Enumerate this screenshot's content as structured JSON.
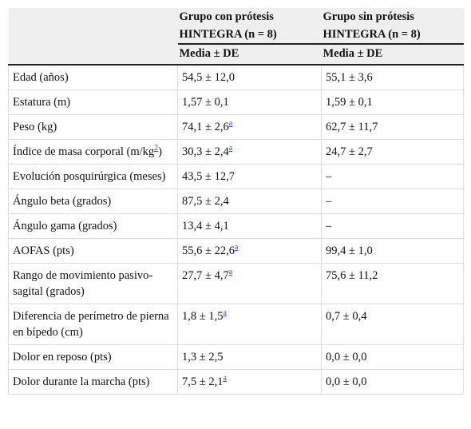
{
  "table": {
    "header": {
      "columns": [
        "Grupo con prótesis HINTEGRA (n = 8)",
        "Grupo sin prótesis HINTEGRA (n = 8)"
      ],
      "sub": [
        "Media ± DE",
        "Media ± DE"
      ]
    },
    "rows": [
      [
        [
          {
            "t": "Edad (años)"
          }
        ],
        [
          {
            "t": "54,5 ± 12,0"
          }
        ],
        [
          {
            "t": "55,1 ± 3,6"
          }
        ]
      ],
      [
        [
          {
            "t": "Estatura (m)"
          }
        ],
        [
          {
            "t": "1,57 ± 0,1"
          }
        ],
        [
          {
            "t": "1,59 ± 0,1"
          }
        ]
      ],
      [
        [
          {
            "t": "Peso (kg)"
          }
        ],
        [
          {
            "t": "74,1 ± 2,6"
          },
          {
            "sup": "a"
          }
        ],
        [
          {
            "t": "62,7 ± 11,7"
          }
        ]
      ],
      [
        [
          {
            "t": "Índice de masa corporal (m/kg"
          },
          {
            "sup": "2"
          },
          {
            "t": ")"
          }
        ],
        [
          {
            "t": "30,3 ± 2,4"
          },
          {
            "sup": "a"
          }
        ],
        [
          {
            "t": "24,7 ± 2,7"
          }
        ]
      ],
      [
        [
          {
            "t": "Evolución posquirúrgica (meses)"
          }
        ],
        [
          {
            "t": "43,5 ± 12,7"
          }
        ],
        [
          {
            "t": "–"
          }
        ]
      ],
      [
        [
          {
            "t": "Ángulo beta (grados)"
          }
        ],
        [
          {
            "t": "87,5 ± 2,4"
          }
        ],
        [
          {
            "t": "–"
          }
        ]
      ],
      [
        [
          {
            "t": "Ángulo gama (grados)"
          }
        ],
        [
          {
            "t": "13,4 ± 4,1"
          }
        ],
        [
          {
            "t": "–"
          }
        ]
      ],
      [
        [
          {
            "t": "AOFAS (pts)"
          }
        ],
        [
          {
            "t": "55,6 ± 22,6"
          },
          {
            "sup": "a"
          }
        ],
        [
          {
            "t": "99,4 ± 1,0"
          }
        ]
      ],
      [
        [
          {
            "t": "Rango de movimiento pasivo-sagital (grados)"
          }
        ],
        [
          {
            "t": "27,7 ± 4,7"
          },
          {
            "sup": "a"
          }
        ],
        [
          {
            "t": "75,6 ± 11,2"
          }
        ]
      ],
      [
        [
          {
            "t": "Diferencia de perímetro de pierna en bípedo (cm)"
          }
        ],
        [
          {
            "t": "1,8 ± 1,5"
          },
          {
            "sup": "a"
          }
        ],
        [
          {
            "t": "0,7 ± 0,4"
          }
        ]
      ],
      [
        [
          {
            "t": "Dolor en reposo (pts)"
          }
        ],
        [
          {
            "t": "1,3 ± 2,5"
          }
        ],
        [
          {
            "t": "0,0 ± 0,0"
          }
        ]
      ],
      [
        [
          {
            "t": "Dolor durante la marcha (pts)"
          }
        ],
        [
          {
            "t": "7,5 ± 2,1"
          },
          {
            "sup": "a"
          }
        ],
        [
          {
            "t": "0,0 ± 0,0"
          }
        ]
      ]
    ]
  }
}
